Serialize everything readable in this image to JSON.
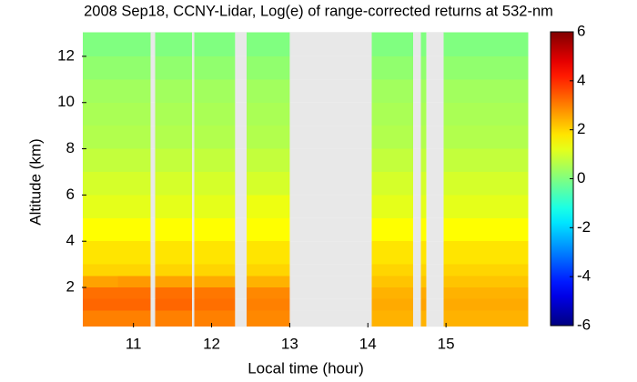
{
  "chart_data": {
    "type": "heatmap",
    "title": "2008 Sep18, CCNY-Lidar, Log(e) of range-corrected returns at 532-nm",
    "x_label": "Local time (hour)",
    "y_label": "Altitude (km)",
    "x_bins": [
      10.35,
      10.8,
      11.22,
      11.28,
      11.75,
      11.78,
      12.3,
      12.45,
      13.0,
      14.05,
      14.58,
      14.68,
      14.75,
      14.97,
      15.5,
      16.05
    ],
    "y_bins": [
      0.3,
      1,
      1.5,
      2,
      2.5,
      3,
      4,
      5,
      6,
      7,
      8,
      9,
      10,
      11,
      12,
      13.05
    ],
    "values": [
      [
        3.0,
        3.0,
        null,
        3.0,
        null,
        3.0,
        null,
        2.9,
        null,
        2.4,
        null,
        2.4,
        null,
        2.4,
        2.4
      ],
      [
        3.3,
        3.3,
        null,
        3.3,
        null,
        3.2,
        null,
        3.0,
        null,
        2.5,
        null,
        2.6,
        null,
        2.5,
        2.5
      ],
      [
        3.2,
        3.2,
        null,
        3.2,
        null,
        3.1,
        null,
        2.9,
        null,
        2.4,
        null,
        2.5,
        null,
        2.4,
        2.4
      ],
      [
        2.6,
        2.7,
        null,
        2.6,
        null,
        2.5,
        null,
        2.4,
        null,
        2.2,
        null,
        2.2,
        null,
        2.2,
        2.2
      ],
      [
        2.0,
        2.0,
        null,
        2.0,
        null,
        2.0,
        null,
        2.0,
        null,
        2.0,
        null,
        2.0,
        null,
        2.0,
        2.0
      ],
      [
        1.8,
        1.8,
        null,
        1.8,
        null,
        1.8,
        null,
        1.8,
        null,
        1.8,
        null,
        1.8,
        null,
        1.8,
        1.8
      ],
      [
        1.5,
        1.5,
        null,
        1.5,
        null,
        1.5,
        null,
        1.5,
        null,
        1.5,
        null,
        1.5,
        null,
        1.5,
        1.5
      ],
      [
        1.2,
        1.2,
        null,
        1.2,
        null,
        1.2,
        null,
        1.3,
        null,
        1.2,
        null,
        1.2,
        null,
        1.2,
        1.2
      ],
      [
        1.0,
        1.0,
        null,
        1.0,
        null,
        1.0,
        null,
        1.0,
        null,
        1.0,
        null,
        1.0,
        null,
        1.0,
        1.0
      ],
      [
        0.8,
        0.8,
        null,
        0.8,
        null,
        0.8,
        null,
        0.8,
        null,
        0.8,
        null,
        0.8,
        null,
        0.8,
        0.8
      ],
      [
        0.6,
        0.6,
        null,
        0.6,
        null,
        0.6,
        null,
        0.6,
        null,
        0.6,
        null,
        0.6,
        null,
        0.6,
        0.6
      ],
      [
        0.5,
        0.5,
        null,
        0.5,
        null,
        0.5,
        null,
        0.5,
        null,
        0.5,
        null,
        0.5,
        null,
        0.5,
        0.5
      ],
      [
        0.4,
        0.4,
        null,
        0.4,
        null,
        0.4,
        null,
        0.4,
        null,
        0.4,
        null,
        0.4,
        null,
        0.4,
        0.4
      ],
      [
        0.2,
        0.2,
        null,
        0.2,
        null,
        0.2,
        null,
        0.2,
        null,
        0.2,
        null,
        0.2,
        null,
        0.2,
        0.2
      ],
      [
        0.0,
        0.0,
        null,
        0.0,
        null,
        0.0,
        null,
        0.0,
        null,
        0.0,
        null,
        0.0,
        null,
        0.0,
        0.0
      ]
    ],
    "xlim": [
      10.34,
      16.07
    ],
    "xticks": [
      11,
      12,
      13,
      14,
      15
    ],
    "ylim": [
      0.27,
      13.06
    ],
    "yticks": [
      2,
      4,
      6,
      8,
      10,
      12
    ],
    "colormap": "jet",
    "clim": [
      -6,
      6
    ],
    "cticks": [
      -6,
      -4,
      -2,
      0,
      2,
      4,
      6
    ],
    "missing_color": "#e8e8e8"
  }
}
